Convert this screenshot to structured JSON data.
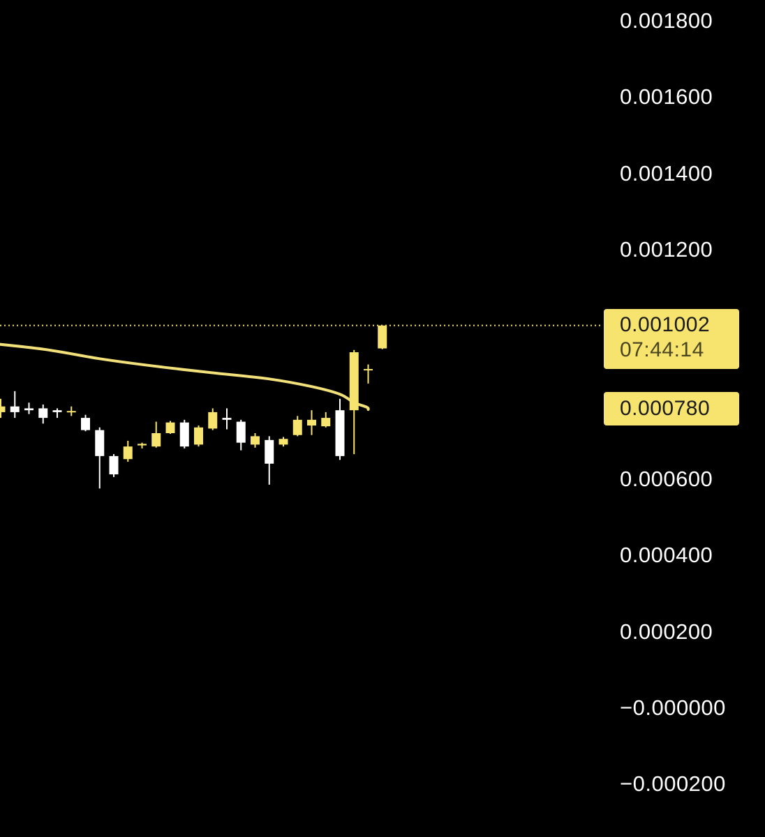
{
  "chart_data": {
    "type": "candlestick",
    "y_axis": {
      "ticks": [
        "0.001800",
        "0.001600",
        "0.001400",
        "0.001200",
        "0.000600",
        "0.000400",
        "0.000200",
        "−0.000000",
        "−0.000200"
      ],
      "tick_values": [
        0.0018,
        0.0016,
        0.0014,
        0.0012,
        0.0006,
        0.0004,
        0.0002,
        0.0,
        -0.0002
      ],
      "range": [
        -0.00021,
        0.00183
      ]
    },
    "last_price": {
      "label": "0.001002",
      "value": 0.001002,
      "countdown": "07:44:14"
    },
    "moving_average": {
      "label": "0.000780",
      "value": 0.00078,
      "points": [
        [
          -2,
          0.00096
        ],
        [
          3,
          0.00094
        ],
        [
          7,
          0.000915
        ],
        [
          11,
          0.000895
        ],
        [
          15,
          0.000878
        ],
        [
          19,
          0.000862
        ],
        [
          22,
          0.000842
        ],
        [
          24,
          0.000822
        ],
        [
          25,
          0.0008
        ],
        [
          25.9,
          0.000788
        ],
        [
          26.0,
          0.000782
        ]
      ]
    },
    "candles": [
      {
        "o": 0.000775,
        "h": 0.00081,
        "l": 0.00076,
        "c": 0.00079
      },
      {
        "o": 0.00079,
        "h": 0.00083,
        "l": 0.00076,
        "c": 0.000775
      },
      {
        "o": 0.000785,
        "h": 0.0008,
        "l": 0.00077,
        "c": 0.00078
      },
      {
        "o": 0.000785,
        "h": 0.000795,
        "l": 0.000745,
        "c": 0.00076
      },
      {
        "o": 0.00078,
        "h": 0.000785,
        "l": 0.00076,
        "c": 0.000775
      },
      {
        "o": 0.000775,
        "h": 0.00079,
        "l": 0.000765,
        "c": 0.000778
      },
      {
        "o": 0.00076,
        "h": 0.000768,
        "l": 0.000725,
        "c": 0.000728
      },
      {
        "o": 0.000728,
        "h": 0.000735,
        "l": 0.000575,
        "c": 0.00066
      },
      {
        "o": 0.00066,
        "h": 0.000665,
        "l": 0.000605,
        "c": 0.000612
      },
      {
        "o": 0.000652,
        "h": 0.0007,
        "l": 0.000645,
        "c": 0.000685
      },
      {
        "o": 0.000688,
        "h": 0.000695,
        "l": 0.00068,
        "c": 0.000692
      },
      {
        "o": 0.000685,
        "h": 0.00075,
        "l": 0.000682,
        "c": 0.00072
      },
      {
        "o": 0.00072,
        "h": 0.000752,
        "l": 0.000718,
        "c": 0.000748
      },
      {
        "o": 0.000748,
        "h": 0.000755,
        "l": 0.00068,
        "c": 0.000685
      },
      {
        "o": 0.00069,
        "h": 0.00074,
        "l": 0.000685,
        "c": 0.000735
      },
      {
        "o": 0.000732,
        "h": 0.000785,
        "l": 0.000728,
        "c": 0.000775
      },
      {
        "o": 0.00076,
        "h": 0.000785,
        "l": 0.00073,
        "c": 0.000755
      },
      {
        "o": 0.00075,
        "h": 0.000755,
        "l": 0.000675,
        "c": 0.000695
      },
      {
        "o": 0.00069,
        "h": 0.00072,
        "l": 0.000682,
        "c": 0.000712
      },
      {
        "o": 0.000702,
        "h": 0.000712,
        "l": 0.000585,
        "c": 0.00064
      },
      {
        "o": 0.00069,
        "h": 0.00071,
        "l": 0.000685,
        "c": 0.000705
      },
      {
        "o": 0.000715,
        "h": 0.000765,
        "l": 0.000712,
        "c": 0.000755
      },
      {
        "o": 0.00074,
        "h": 0.00078,
        "l": 0.000715,
        "c": 0.000755
      },
      {
        "o": 0.000738,
        "h": 0.000775,
        "l": 0.000735,
        "c": 0.00076
      },
      {
        "o": 0.00078,
        "h": 0.00081,
        "l": 0.00065,
        "c": 0.00066
      },
      {
        "o": 0.00078,
        "h": 0.000938,
        "l": 0.000665,
        "c": 0.000932
      },
      {
        "o": 0.000885,
        "h": 0.0009,
        "l": 0.00085,
        "c": 0.000888
      },
      {
        "o": 0.000942,
        "h": 0.001002,
        "l": 0.00094,
        "c": 0.001002
      }
    ],
    "colors": {
      "up": "#f7e46f",
      "down": "#ffffff",
      "moving_average": "#f2e07a",
      "price_line": "#f7e46f",
      "background": "#000000",
      "tag_background": "#f7e46f"
    },
    "grid": false,
    "legend": "none"
  }
}
